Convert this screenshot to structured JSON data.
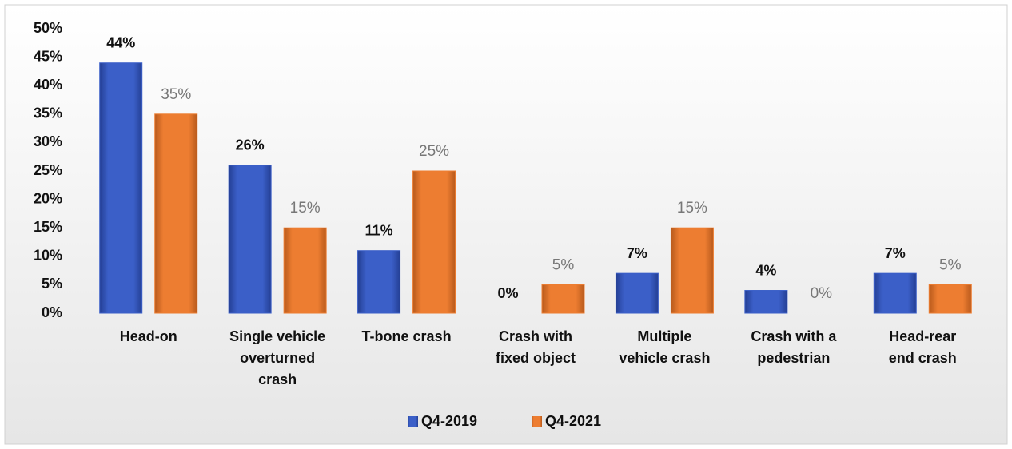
{
  "chart_data": {
    "type": "bar",
    "categories": [
      "Head-on",
      "Single vehicle\noverturned\ncrash",
      "T-bone crash",
      "Crash with\nfixed object",
      "Multiple\nvehicle crash",
      "Crash with a\npedestrian",
      "Head-rear\nend crash"
    ],
    "series": [
      {
        "name": "Q4-2019",
        "color": "#3b5fc8",
        "values": [
          44,
          26,
          11,
          0,
          7,
          4,
          7
        ],
        "value_labels": [
          "44%",
          "26%",
          "11%",
          "0%",
          "7%",
          "4%",
          "7%"
        ]
      },
      {
        "name": "Q4-2021",
        "color": "#ed7d31",
        "values": [
          35,
          15,
          25,
          5,
          15,
          0,
          5
        ],
        "value_labels": [
          "35%",
          "15%",
          "25%",
          "5%",
          "15%",
          "0%",
          "5%"
        ]
      }
    ],
    "ylim": [
      0,
      50
    ],
    "yticks": [
      {
        "value": 0,
        "label": "0%"
      },
      {
        "value": 5,
        "label": "5%"
      },
      {
        "value": 10,
        "label": "10%"
      },
      {
        "value": 15,
        "label": "15%"
      },
      {
        "value": 20,
        "label": "20%"
      },
      {
        "value": 25,
        "label": "25%"
      },
      {
        "value": 30,
        "label": "30%"
      },
      {
        "value": 35,
        "label": "35%"
      },
      {
        "value": 40,
        "label": "40%"
      },
      {
        "value": 45,
        "label": "45%"
      },
      {
        "value": 50,
        "label": "50%"
      }
    ],
    "grid": false,
    "legend": "bottom"
  }
}
